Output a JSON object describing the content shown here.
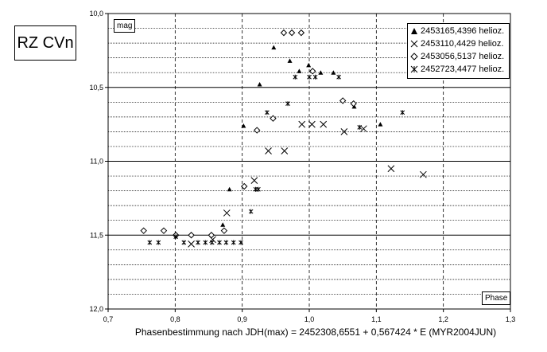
{
  "star_label": "RZ CVn",
  "ylabel": "mag",
  "xlabel_tag": "Phase",
  "caption": "Phasenbestimmung nach JDH(max) = 2452308,6551 + 0,567424 * E (MYR2004JUN)",
  "chart_data": {
    "type": "scatter",
    "title": "",
    "ylabel": "mag",
    "xlabel": "Phase",
    "xlim": [
      0.7,
      1.3
    ],
    "ylim": [
      10.0,
      12.0
    ],
    "y_inverted": true,
    "x_ticks": [
      "0,7",
      "0,8",
      "0,9",
      "1,0",
      "1,1",
      "1,2",
      "1,3"
    ],
    "y_ticks": [
      "10,0",
      "10,5",
      "11,0",
      "11,5",
      "12,0"
    ],
    "grid": "dashed vertical every 0.1, solid major horizontal every 0.5, dotted minor horizontal every 0.1",
    "legend_position": "top-right",
    "series": [
      {
        "name": "2453165,4396 helioz.",
        "marker": "triangle",
        "color": "#000000",
        "points": [
          [
            0.902,
            10.76
          ],
          [
            0.881,
            11.19
          ],
          [
            0.871,
            11.43
          ],
          [
            0.926,
            10.48
          ],
          [
            0.947,
            10.23
          ],
          [
            0.971,
            10.32
          ],
          [
            0.985,
            10.39
          ],
          [
            0.999,
            10.35
          ],
          [
            1.017,
            10.4
          ],
          [
            1.036,
            10.4
          ],
          [
            1.067,
            10.63
          ],
          [
            1.106,
            10.75
          ]
        ]
      },
      {
        "name": "2453110,4429 helioz.",
        "marker": "x",
        "color": "#000000",
        "points": [
          [
            0.824,
            11.56
          ],
          [
            0.856,
            11.53
          ],
          [
            0.877,
            11.35
          ],
          [
            0.918,
            11.13
          ],
          [
            0.939,
            10.93
          ],
          [
            0.963,
            10.93
          ],
          [
            0.989,
            10.75
          ],
          [
            1.004,
            10.75
          ],
          [
            1.021,
            10.75
          ],
          [
            1.052,
            10.8
          ],
          [
            1.081,
            10.78
          ],
          [
            1.122,
            11.05
          ],
          [
            1.17,
            11.09
          ]
        ]
      },
      {
        "name": "2453056,5137 helioz.",
        "marker": "diamond",
        "color": "#000000",
        "points": [
          [
            0.753,
            11.47
          ],
          [
            0.783,
            11.47
          ],
          [
            0.801,
            11.5
          ],
          [
            0.824,
            11.5
          ],
          [
            0.854,
            11.5
          ],
          [
            0.873,
            11.47
          ],
          [
            0.903,
            11.17
          ],
          [
            0.922,
            10.79
          ],
          [
            0.946,
            10.71
          ],
          [
            0.962,
            10.13
          ],
          [
            0.974,
            10.13
          ],
          [
            0.988,
            10.13
          ],
          [
            1.005,
            10.39
          ],
          [
            1.05,
            10.59
          ],
          [
            1.066,
            10.61
          ]
        ]
      },
      {
        "name": "2452723,4477 helioz.",
        "marker": "asterisk",
        "color": "#000000",
        "points": [
          [
            0.762,
            11.55
          ],
          [
            0.775,
            11.55
          ],
          [
            0.801,
            11.51
          ],
          [
            0.813,
            11.55
          ],
          [
            0.834,
            11.55
          ],
          [
            0.845,
            11.55
          ],
          [
            0.855,
            11.55
          ],
          [
            0.866,
            11.55
          ],
          [
            0.876,
            11.55
          ],
          [
            0.887,
            11.55
          ],
          [
            0.898,
            11.55
          ],
          [
            0.913,
            11.34
          ],
          [
            0.92,
            11.19
          ],
          [
            0.924,
            11.19
          ],
          [
            0.937,
            10.67
          ],
          [
            0.968,
            10.61
          ],
          [
            0.979,
            10.43
          ],
          [
            1.0,
            10.43
          ],
          [
            1.009,
            10.43
          ],
          [
            1.044,
            10.43
          ],
          [
            1.075,
            10.77
          ],
          [
            1.139,
            10.67
          ]
        ]
      }
    ]
  }
}
